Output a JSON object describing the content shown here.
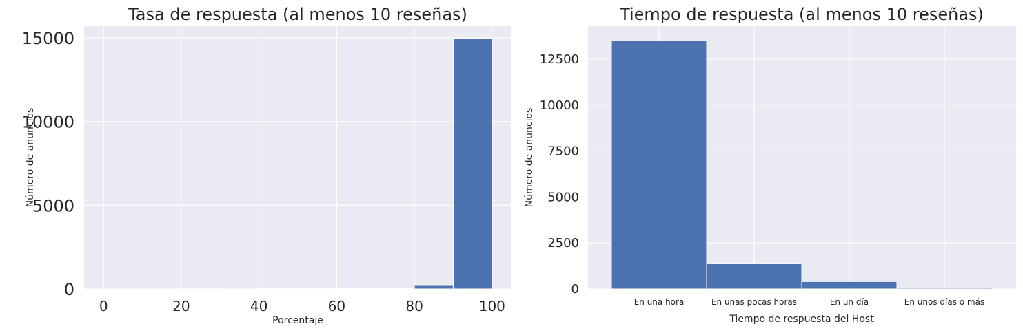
{
  "chart_data": [
    {
      "type": "bar",
      "title": "Tasa de respuesta (al menos 10 reseñas)",
      "xlabel": "Porcentaje",
      "ylabel": "Número de anuncios",
      "xlim": [
        -5,
        105
      ],
      "ylim": [
        0,
        15700
      ],
      "xticks": [
        0,
        20,
        40,
        60,
        80,
        100
      ],
      "yticks": [
        0,
        5000,
        10000,
        15000
      ],
      "bins": [
        {
          "start": 0,
          "end": 10,
          "value": 5
        },
        {
          "start": 10,
          "end": 20,
          "value": 3
        },
        {
          "start": 20,
          "end": 30,
          "value": 8
        },
        {
          "start": 30,
          "end": 40,
          "value": 5
        },
        {
          "start": 40,
          "end": 50,
          "value": 15
        },
        {
          "start": 50,
          "end": 60,
          "value": 12
        },
        {
          "start": 60,
          "end": 70,
          "value": 25
        },
        {
          "start": 70,
          "end": 80,
          "value": 40
        },
        {
          "start": 80,
          "end": 90,
          "value": 250
        },
        {
          "start": 90,
          "end": 100,
          "value": 14950
        }
      ],
      "bar_color": "#4c72b0",
      "background": "#eaeaf2",
      "grid": true
    },
    {
      "type": "bar",
      "title": "Tiempo de respuesta (al menos 10 reseñas)",
      "xlabel": "Tiempo de respuesta del Host",
      "ylabel": "Número de anuncios",
      "categories": [
        "En una hora",
        "En unas pocas horas",
        "En un día",
        "En unos días o más"
      ],
      "values": [
        13500,
        1380,
        400,
        50
      ],
      "ylim": [
        0,
        14300
      ],
      "yticks": [
        0,
        2500,
        5000,
        7500,
        10000,
        12500
      ],
      "bar_color": "#4c72b0",
      "background": "#eaeaf2",
      "grid": true
    }
  ]
}
